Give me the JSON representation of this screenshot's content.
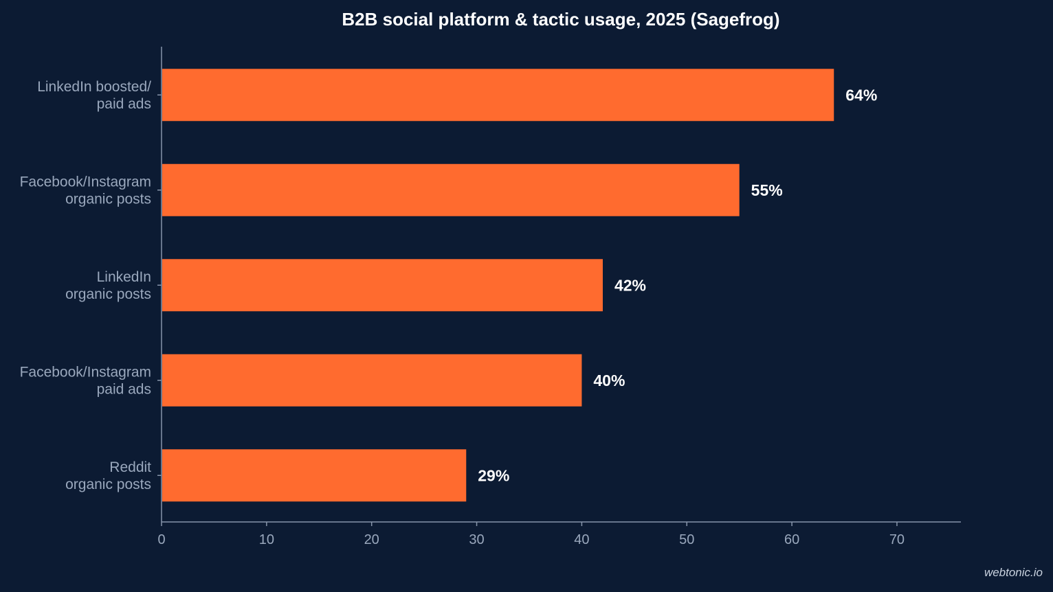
{
  "chart_data": {
    "type": "bar",
    "orientation": "horizontal",
    "title": "B2B social platform & tactic usage, 2025 (Sagefrog)",
    "xlabel": "",
    "ylabel": "",
    "xlim": [
      0,
      76
    ],
    "x_ticks": [
      0,
      10,
      20,
      30,
      40,
      50,
      60,
      70
    ],
    "categories": [
      [
        "LinkedIn boosted/",
        "paid ads"
      ],
      [
        "Facebook/Instagram",
        "organic posts"
      ],
      [
        "LinkedIn",
        "organic posts"
      ],
      [
        "Facebook/Instagram",
        "paid ads"
      ],
      [
        "Reddit",
        "organic posts"
      ]
    ],
    "values": [
      64,
      55,
      42,
      40,
      29
    ],
    "value_labels": [
      "64%",
      "55%",
      "42%",
      "40%",
      "29%"
    ],
    "grid": false,
    "legend": "none",
    "colors": {
      "background": "#0c1b33",
      "bar": "#ff6b2f",
      "axis": "#8795ab"
    }
  },
  "watermark": "webtonic.io"
}
